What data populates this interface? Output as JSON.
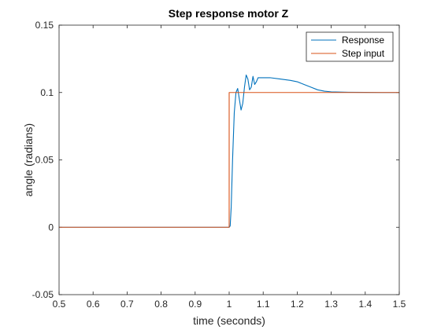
{
  "chart_data": {
    "type": "line",
    "title": "Step response motor Z",
    "xlabel": "time (seconds)",
    "ylabel": "angle (radians)",
    "xlim": [
      0.5,
      1.5
    ],
    "ylim": [
      -0.05,
      0.15
    ],
    "xticks": [
      0.5,
      0.6,
      0.7,
      0.8,
      0.9,
      1,
      1.1,
      1.2,
      1.3,
      1.4,
      1.5
    ],
    "xtick_labels": [
      "0.5",
      "0.6",
      "0.7",
      "0.8",
      "0.9",
      "1",
      "1.1",
      "1.2",
      "1.3",
      "1.4",
      "1.5"
    ],
    "yticks": [
      -0.05,
      0,
      0.05,
      0.1,
      0.15
    ],
    "ytick_labels": [
      "-0.05",
      "0",
      "0.05",
      "0.1",
      "0.15"
    ],
    "grid": false,
    "legend_position": "top-right",
    "series": [
      {
        "name": "Response",
        "color": "#0072BD",
        "x": [
          0.5,
          1.0,
          1.003,
          1.006,
          1.01,
          1.015,
          1.02,
          1.025,
          1.03,
          1.035,
          1.04,
          1.045,
          1.05,
          1.055,
          1.06,
          1.065,
          1.07,
          1.075,
          1.08,
          1.085,
          1.09,
          1.1,
          1.12,
          1.15,
          1.18,
          1.2,
          1.22,
          1.24,
          1.26,
          1.28,
          1.3,
          1.35,
          1.4,
          1.45,
          1.5
        ],
        "y": [
          0,
          0,
          0.001,
          0.015,
          0.05,
          0.085,
          0.1,
          0.103,
          0.095,
          0.087,
          0.092,
          0.104,
          0.113,
          0.11,
          0.102,
          0.104,
          0.112,
          0.106,
          0.108,
          0.111,
          0.111,
          0.111,
          0.111,
          0.11,
          0.109,
          0.108,
          0.106,
          0.104,
          0.102,
          0.101,
          0.1005,
          0.1002,
          0.1001,
          0.1,
          0.1
        ]
      },
      {
        "name": "Step input",
        "color": "#D95319",
        "x": [
          0.5,
          1.0,
          1.0,
          1.5
        ],
        "y": [
          0,
          0,
          0.1,
          0.1
        ]
      }
    ]
  }
}
